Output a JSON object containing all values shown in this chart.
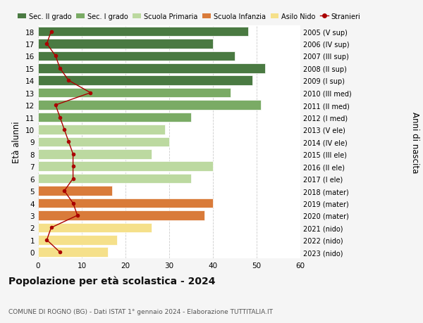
{
  "ages": [
    18,
    17,
    16,
    15,
    14,
    13,
    12,
    11,
    10,
    9,
    8,
    7,
    6,
    5,
    4,
    3,
    2,
    1,
    0
  ],
  "years": [
    "2005 (V sup)",
    "2006 (IV sup)",
    "2007 (III sup)",
    "2008 (II sup)",
    "2009 (I sup)",
    "2010 (III med)",
    "2011 (II med)",
    "2012 (I med)",
    "2013 (V ele)",
    "2014 (IV ele)",
    "2015 (III ele)",
    "2016 (II ele)",
    "2017 (I ele)",
    "2018 (mater)",
    "2019 (mater)",
    "2020 (mater)",
    "2021 (nido)",
    "2022 (nido)",
    "2023 (nido)"
  ],
  "bar_values": [
    48,
    40,
    45,
    52,
    49,
    44,
    51,
    35,
    29,
    30,
    26,
    40,
    35,
    17,
    40,
    38,
    26,
    18,
    16
  ],
  "stranieri": [
    3,
    2,
    4,
    5,
    7,
    12,
    4,
    5,
    6,
    7,
    8,
    8,
    8,
    6,
    8,
    9,
    3,
    2,
    5
  ],
  "bar_colors": [
    "#4a7a42",
    "#4a7a42",
    "#4a7a42",
    "#4a7a42",
    "#4a7a42",
    "#7aab65",
    "#7aab65",
    "#7aab65",
    "#bcd9a0",
    "#bcd9a0",
    "#bcd9a0",
    "#bcd9a0",
    "#bcd9a0",
    "#d97b3a",
    "#d97b3a",
    "#d97b3a",
    "#f5e08a",
    "#f5e08a",
    "#f5e08a"
  ],
  "legend_labels": [
    "Sec. II grado",
    "Sec. I grado",
    "Scuola Primaria",
    "Scuola Infanzia",
    "Asilo Nido",
    "Stranieri"
  ],
  "legend_colors": [
    "#4a7a42",
    "#7aab65",
    "#bcd9a0",
    "#d97b3a",
    "#f5e08a",
    "#aa0000"
  ],
  "stranieri_color": "#aa0000",
  "title": "Popolazione per età scolastica - 2024",
  "subtitle": "COMUNE DI ROGNO (BG) - Dati ISTAT 1° gennaio 2024 - Elaborazione TUTTITALIA.IT",
  "ylabel_left": "Età alunni",
  "ylabel_right": "Anni di nascita",
  "xlim": [
    0,
    60
  ],
  "background_color": "#f5f5f5",
  "plot_bg_color": "#ffffff",
  "grid_color": "#cccccc"
}
